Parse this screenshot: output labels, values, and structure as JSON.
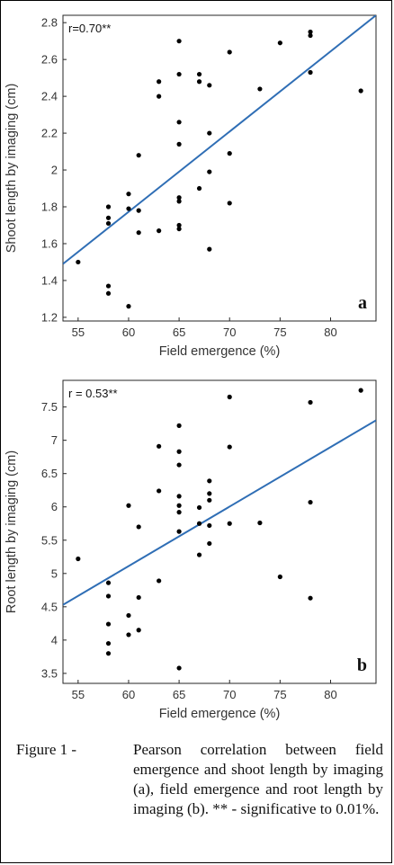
{
  "caption": {
    "lead": "Figure 1 - ",
    "body": "Pearson correlation between field emergence and shoot length by imaging (a), field emergence and root length by imaging (b). ** - significative to 0.01%."
  },
  "chart_data": [
    {
      "type": "scatter",
      "panel_label": "a",
      "annotation": "r=0.70**",
      "xlabel": "Field emergence (%)",
      "ylabel": "Shoot length by imaging (cm)",
      "xlim": [
        53.5,
        84.5
      ],
      "ylim": [
        1.18,
        2.84
      ],
      "xticks": [
        55,
        60,
        65,
        70,
        75,
        80
      ],
      "yticks": [
        1.2,
        1.4,
        1.6,
        1.8,
        2,
        2.2,
        2.4,
        2.6,
        2.8
      ],
      "grid": false,
      "marker_color": "#000000",
      "line_color": "#2f6eb5",
      "regression_line": {
        "x": [
          53.5,
          84.5
        ],
        "y": [
          1.49,
          2.84
        ]
      },
      "points": [
        [
          55,
          1.5
        ],
        [
          58,
          1.8
        ],
        [
          58,
          1.74
        ],
        [
          58,
          1.71
        ],
        [
          58,
          1.37
        ],
        [
          58,
          1.33
        ],
        [
          60,
          1.87
        ],
        [
          60,
          1.79
        ],
        [
          60,
          1.26
        ],
        [
          61,
          2.08
        ],
        [
          61,
          1.78
        ],
        [
          61,
          1.66
        ],
        [
          63,
          2.48
        ],
        [
          63,
          2.4
        ],
        [
          63,
          1.67
        ],
        [
          65,
          2.7
        ],
        [
          65,
          2.52
        ],
        [
          65,
          2.26
        ],
        [
          65,
          2.14
        ],
        [
          65,
          1.85
        ],
        [
          65,
          1.83
        ],
        [
          65,
          1.7
        ],
        [
          65,
          1.68
        ],
        [
          67,
          2.52
        ],
        [
          67,
          2.48
        ],
        [
          67,
          1.9
        ],
        [
          68,
          2.46
        ],
        [
          68,
          2.2
        ],
        [
          68,
          1.99
        ],
        [
          68,
          1.57
        ],
        [
          70,
          2.64
        ],
        [
          70,
          2.09
        ],
        [
          70,
          1.82
        ],
        [
          73,
          2.44
        ],
        [
          75,
          2.69
        ],
        [
          78,
          2.75
        ],
        [
          78,
          2.73
        ],
        [
          78,
          2.53
        ],
        [
          83,
          2.43
        ]
      ]
    },
    {
      "type": "scatter",
      "panel_label": "b",
      "annotation": "r = 0.53**",
      "xlabel": "Field emergence (%)",
      "ylabel": "Root length by imaging (cm)",
      "xlim": [
        53.5,
        84.5
      ],
      "ylim": [
        3.35,
        7.9
      ],
      "xticks": [
        55,
        60,
        65,
        70,
        75,
        80
      ],
      "yticks": [
        3.5,
        4,
        4.5,
        5,
        5.5,
        6,
        6.5,
        7,
        7.5
      ],
      "grid": false,
      "marker_color": "#000000",
      "line_color": "#2f6eb5",
      "regression_line": {
        "x": [
          53.5,
          84.5
        ],
        "y": [
          4.53,
          7.3
        ]
      },
      "points": [
        [
          55,
          5.22
        ],
        [
          58,
          4.86
        ],
        [
          58,
          4.66
        ],
        [
          58,
          4.24
        ],
        [
          58,
          3.95
        ],
        [
          58,
          3.8
        ],
        [
          60,
          6.02
        ],
        [
          60,
          4.37
        ],
        [
          60,
          4.08
        ],
        [
          61,
          5.7
        ],
        [
          61,
          4.64
        ],
        [
          61,
          4.15
        ],
        [
          63,
          6.91
        ],
        [
          63,
          6.24
        ],
        [
          63,
          4.89
        ],
        [
          65,
          7.22
        ],
        [
          65,
          6.83
        ],
        [
          65,
          6.63
        ],
        [
          65,
          6.16
        ],
        [
          65,
          6.02
        ],
        [
          65,
          5.92
        ],
        [
          65,
          5.63
        ],
        [
          65,
          3.58
        ],
        [
          67,
          5.99
        ],
        [
          67,
          5.75
        ],
        [
          67,
          5.28
        ],
        [
          68,
          6.39
        ],
        [
          68,
          6.2
        ],
        [
          68,
          6.1
        ],
        [
          68,
          5.72
        ],
        [
          68,
          5.45
        ],
        [
          70,
          7.65
        ],
        [
          70,
          6.9
        ],
        [
          70,
          5.75
        ],
        [
          73,
          5.76
        ],
        [
          75,
          4.95
        ],
        [
          78,
          7.57
        ],
        [
          78,
          6.07
        ],
        [
          78,
          4.63
        ],
        [
          83,
          7.75
        ]
      ]
    }
  ]
}
